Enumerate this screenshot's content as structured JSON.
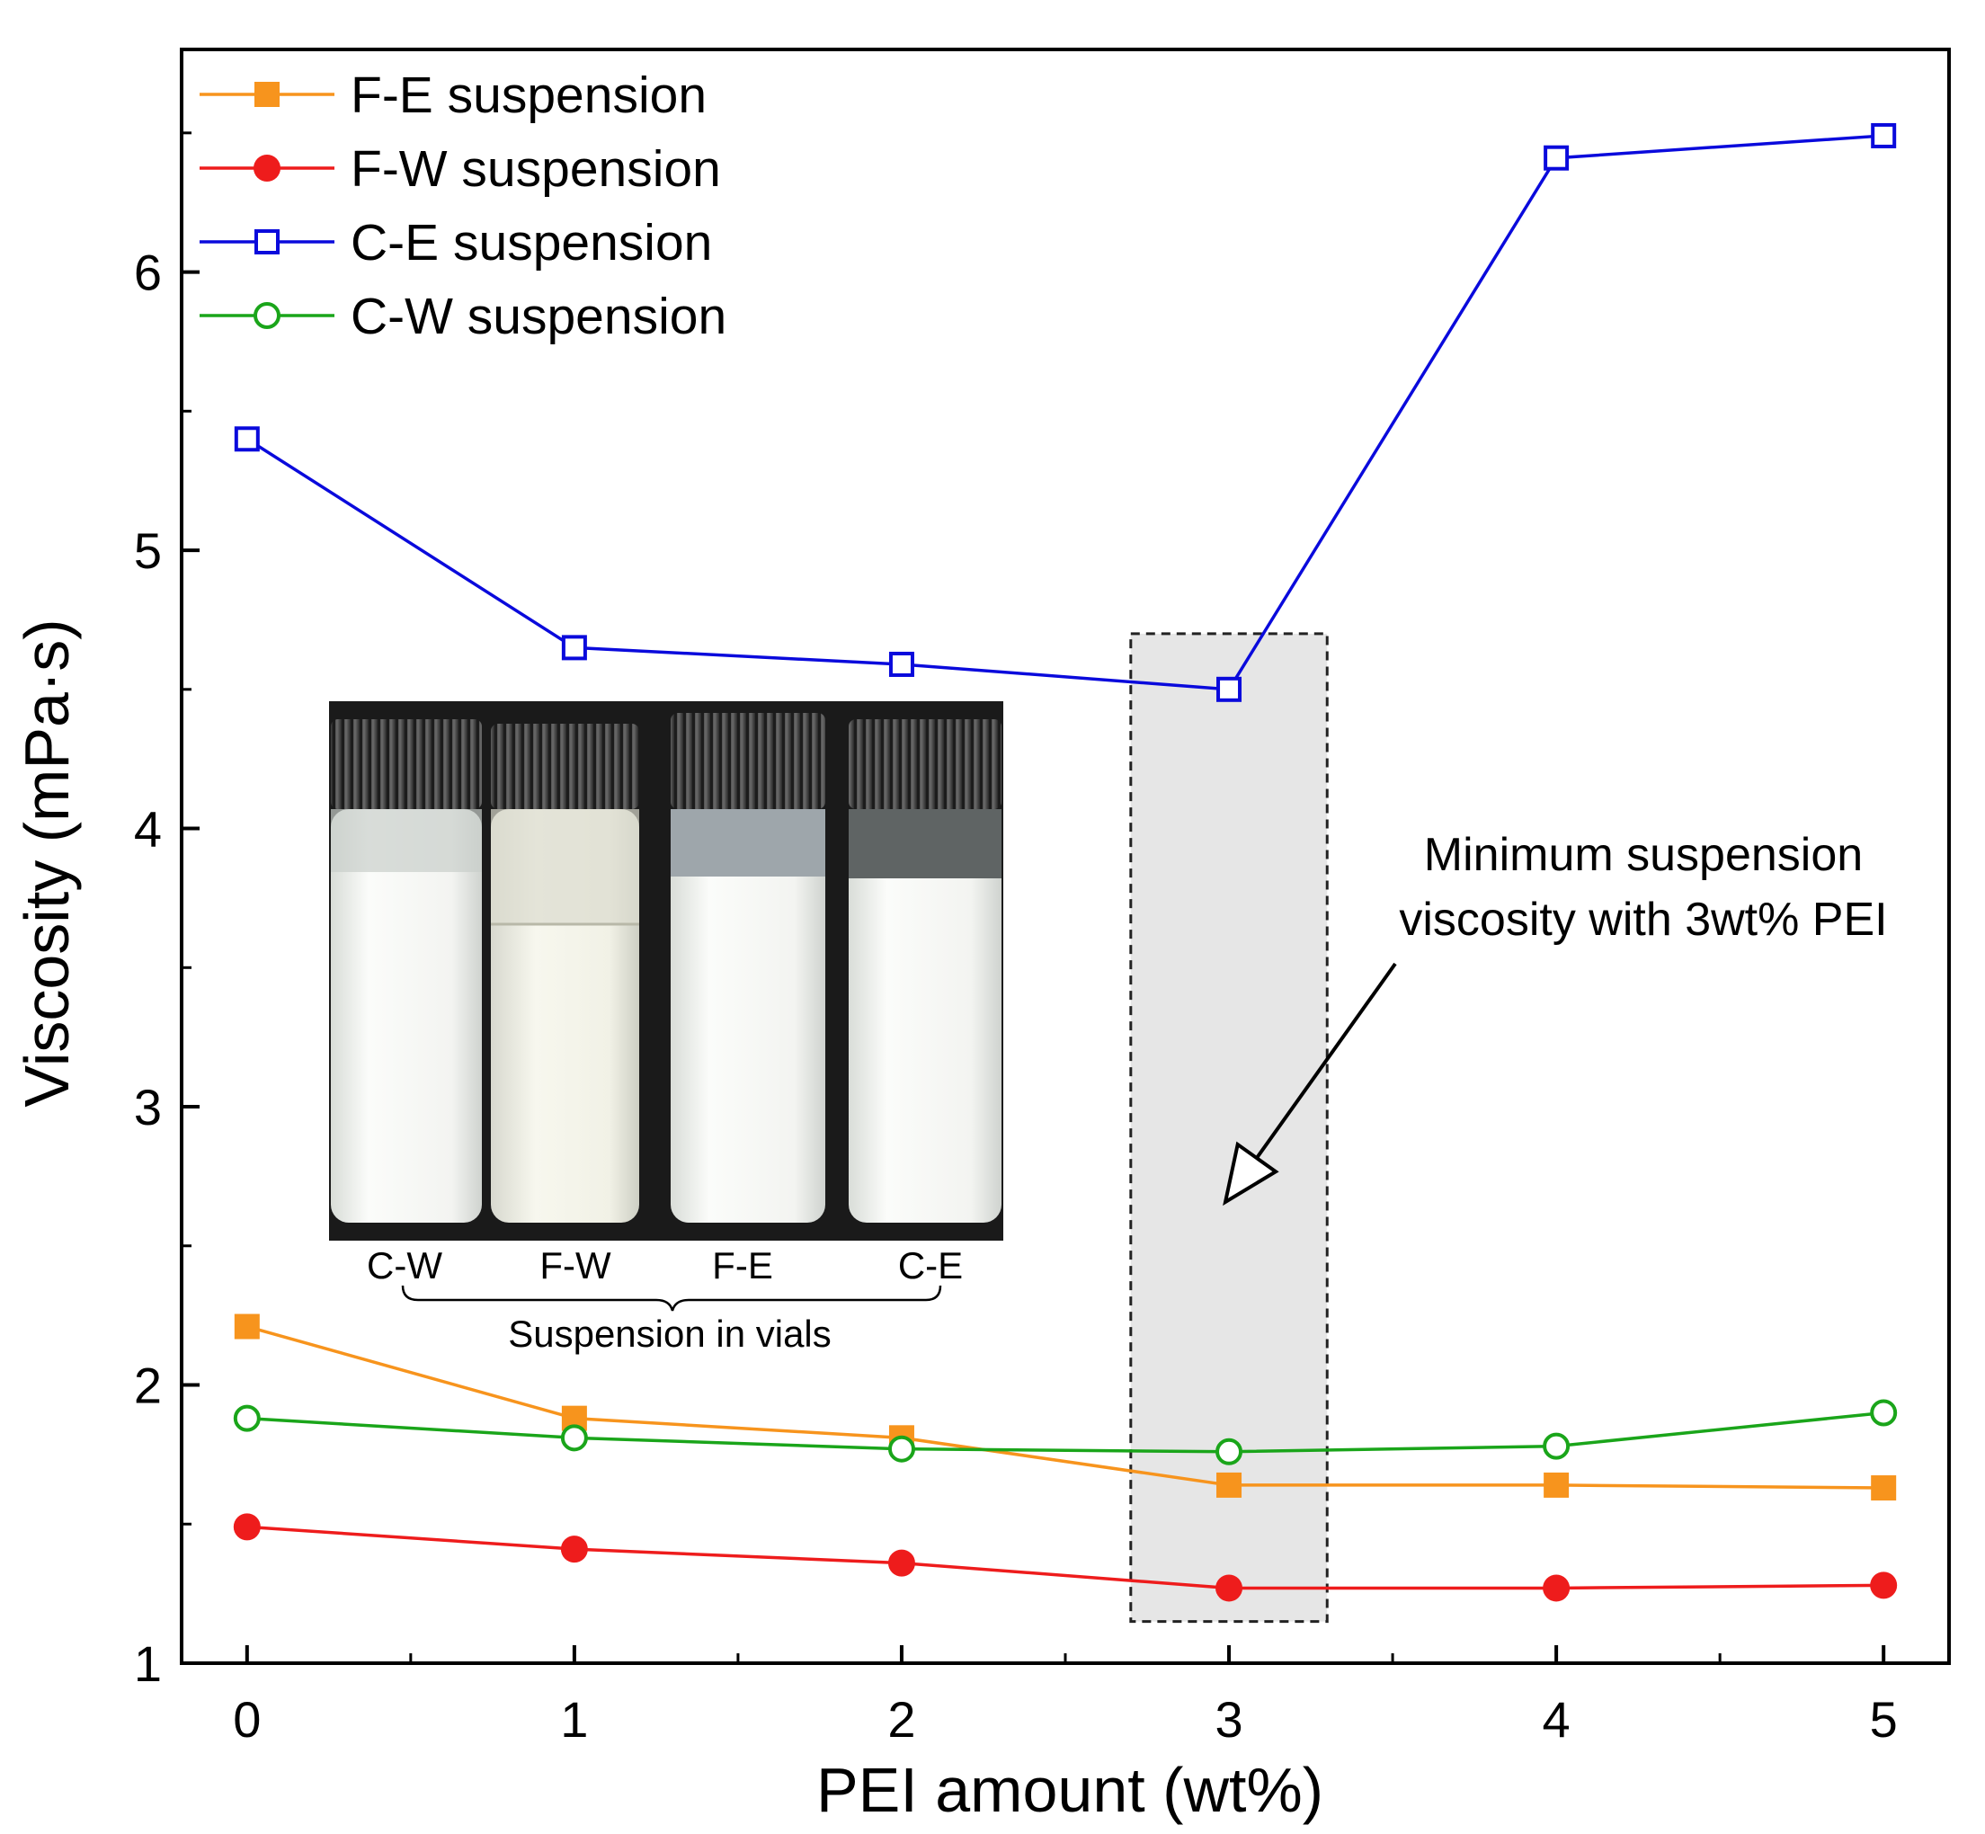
{
  "chart_data": {
    "type": "line",
    "xlabel": "PEI amount (wt%)",
    "ylabel": "Viscosity (mPa·s)",
    "xlim": [
      -0.2,
      5.2
    ],
    "ylim": [
      1,
      6.8
    ],
    "x_ticks": [
      0,
      1,
      2,
      3,
      4,
      5
    ],
    "y_ticks": [
      1,
      2,
      3,
      4,
      5,
      6
    ],
    "x": [
      0,
      1,
      2,
      3,
      4,
      5
    ],
    "series": [
      {
        "name": "F-E suspension",
        "color": "#f7941d",
        "marker": "filled-square",
        "values": [
          2.21,
          1.88,
          1.81,
          1.64,
          1.64,
          1.63
        ]
      },
      {
        "name": "F-W suspension",
        "color": "#ee1c1c",
        "marker": "filled-circle",
        "values": [
          1.49,
          1.41,
          1.36,
          1.27,
          1.27,
          1.28
        ]
      },
      {
        "name": "C-E suspension",
        "color": "#0a0adc",
        "marker": "open-square",
        "values": [
          5.4,
          4.65,
          4.59,
          4.5,
          6.41,
          6.49
        ]
      },
      {
        "name": "C-W suspension",
        "color": "#1aa51a",
        "marker": "open-circle",
        "values": [
          1.88,
          1.81,
          1.77,
          1.76,
          1.78,
          1.9
        ]
      }
    ],
    "legend_position": "top-left",
    "highlight_region": {
      "x_range": [
        2.7,
        3.3
      ],
      "y_range": [
        1.15,
        4.7
      ]
    },
    "annotation": {
      "lines": [
        "Minimum suspension",
        "viscosity with 3wt% PEI"
      ],
      "arrow_to": {
        "x": 3.0,
        "y": 2.9
      }
    },
    "inset": {
      "vial_labels": [
        "C-W",
        "F-W",
        "F-E",
        "C-E"
      ],
      "caption": "Suspension in vials"
    }
  }
}
